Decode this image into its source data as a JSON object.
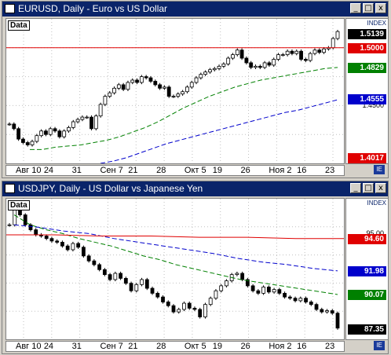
{
  "windows": [
    {
      "title": "EURUSD, Daily - Euro vs US Dollar",
      "data_label": "Data",
      "index_label": "INDEX",
      "price_labels": [
        {
          "text": "1.5139",
          "bg": "#000000",
          "fg": "#ffffff",
          "value": 1.5139
        },
        {
          "text": "1.5000",
          "bg": "#e00000",
          "fg": "#ffffff",
          "value": 1.5
        },
        {
          "text": "1.4829",
          "bg": "#008000",
          "fg": "#ffffff",
          "value": 1.4829
        },
        {
          "text": "1.4555",
          "bg": "#0000cc",
          "fg": "#ffffff",
          "value": 1.4555
        },
        {
          "text": "1.4017",
          "bg": "#e00000",
          "fg": "#ffffff",
          "value": 1.4017
        }
      ],
      "ticks": [
        {
          "text": "1.4500",
          "value": 1.45
        }
      ],
      "x_labels": [
        "Авг 10",
        "24",
        "31",
        "Сен 7",
        "21",
        "28",
        "Окт 5",
        "19",
        "26",
        "Ноя 2",
        "16",
        "23"
      ]
    },
    {
      "title": "USDJPY, Daily - US Dollar vs Japanese Yen",
      "data_label": "Data",
      "index_label": "INDEX",
      "price_labels": [
        {
          "text": "94.60",
          "bg": "#e00000",
          "fg": "#ffffff",
          "value": 94.6
        },
        {
          "text": "91.98",
          "bg": "#0000cc",
          "fg": "#ffffff",
          "value": 91.98
        },
        {
          "text": "90.07",
          "bg": "#008000",
          "fg": "#ffffff",
          "value": 90.07
        },
        {
          "text": "87.35",
          "bg": "#000000",
          "fg": "#ffffff",
          "value": 87.35
        }
      ],
      "ticks": [
        {
          "text": "95.00",
          "value": 95.0
        }
      ],
      "x_labels": [
        "Авг 10",
        "24",
        "31",
        "Сен 7",
        "21",
        "28",
        "Окт 5",
        "19",
        "26",
        "Ноя 2",
        "16",
        "23"
      ]
    }
  ],
  "window_buttons": {
    "minimize": "_",
    "maximize": "□",
    "close": "x"
  },
  "chart_data": [
    {
      "type": "line",
      "title": "EURUSD, Daily - Euro vs US Dollar",
      "ylim": [
        1.4,
        1.525
      ],
      "series": [
        {
          "values": [
            1.434,
            1.43,
            1.421,
            1.418,
            1.416,
            1.419,
            1.424,
            1.428,
            1.425,
            1.43,
            1.428,
            1.423,
            1.428,
            1.431,
            1.436,
            1.438,
            1.44,
            1.44,
            1.43,
            1.441,
            1.451,
            1.458,
            1.461,
            1.465,
            1.468,
            1.464,
            1.47,
            1.472,
            1.47,
            1.475,
            1.474,
            1.471,
            1.468,
            1.465,
            1.466,
            1.458,
            1.458,
            1.46,
            1.462,
            1.466,
            1.47,
            1.474,
            1.477,
            1.479,
            1.481,
            1.482,
            1.484,
            1.486,
            1.491,
            1.494,
            1.498,
            1.491,
            1.487,
            1.483,
            1.484,
            1.483,
            1.487,
            1.485,
            1.49,
            1.494,
            1.494,
            1.497,
            1.495,
            1.497,
            1.49,
            1.489,
            1.495,
            1.498,
            1.496,
            1.499,
            1.5,
            1.508,
            1.514
          ],
          "ohlc": true
        },
        {
          "values": [
            1.412,
            1.412,
            1.414,
            1.415,
            1.416,
            1.418,
            1.42,
            1.423,
            1.427,
            1.431,
            1.436,
            1.442,
            1.448,
            1.453,
            1.458,
            1.462,
            1.466,
            1.469,
            1.472,
            1.474,
            1.476,
            1.478,
            1.48,
            1.482,
            1.483
          ]
        },
        {
          "values": [
            1.4,
            1.402,
            1.405,
            1.409,
            1.413,
            1.417,
            1.42,
            1.423,
            1.426,
            1.429,
            1.432,
            1.435,
            1.438,
            1.441,
            1.444,
            1.446,
            1.449,
            1.452,
            1.455
          ]
        },
        {
          "values": [
            1.5,
            1.5
          ]
        }
      ]
    },
    {
      "type": "line",
      "title": "USDJPY, Daily - US Dollar vs Japanese Yen",
      "ylim": [
        86.5,
        97.8
      ],
      "series": [
        {
          "values": [
            95.7,
            97.0,
            96.5,
            95.7,
            95.3,
            94.9,
            94.8,
            94.6,
            94.4,
            94.3,
            94.0,
            93.7,
            94.2,
            93.9,
            93.2,
            92.8,
            92.5,
            92.1,
            91.7,
            91.3,
            91.8,
            91.4,
            91.0,
            90.4,
            90.9,
            91.3,
            90.6,
            90.2,
            89.9,
            89.5,
            89.2,
            88.7,
            88.9,
            89.4,
            89.0,
            88.9,
            88.3,
            89.3,
            89.8,
            90.4,
            90.8,
            91.2,
            91.7,
            91.8,
            91.3,
            90.8,
            90.4,
            90.2,
            90.7,
            90.3,
            90.5,
            90.2,
            89.9,
            89.8,
            89.6,
            89.8,
            89.5,
            89.3,
            88.9,
            88.7,
            88.8,
            88.6,
            87.4
          ],
          "ohlc": true
        },
        {
          "values": [
            96.5,
            95.7,
            95.3,
            95.0,
            94.6,
            94.3,
            94.0,
            93.6,
            93.2,
            92.9,
            92.5,
            92.2,
            91.9,
            91.6,
            91.3,
            91.1,
            90.9,
            90.7,
            90.5,
            90.3,
            90.1
          ]
        },
        {
          "values": [
            95.7,
            95.5,
            95.2,
            95.0,
            94.6,
            94.3,
            94.0,
            93.7,
            93.4,
            93.0,
            92.7,
            92.5,
            92.2,
            92.0
          ]
        },
        {
          "values": [
            94.9,
            94.9,
            94.8,
            94.8,
            94.7,
            94.7,
            94.6,
            94.6
          ]
        }
      ]
    }
  ]
}
